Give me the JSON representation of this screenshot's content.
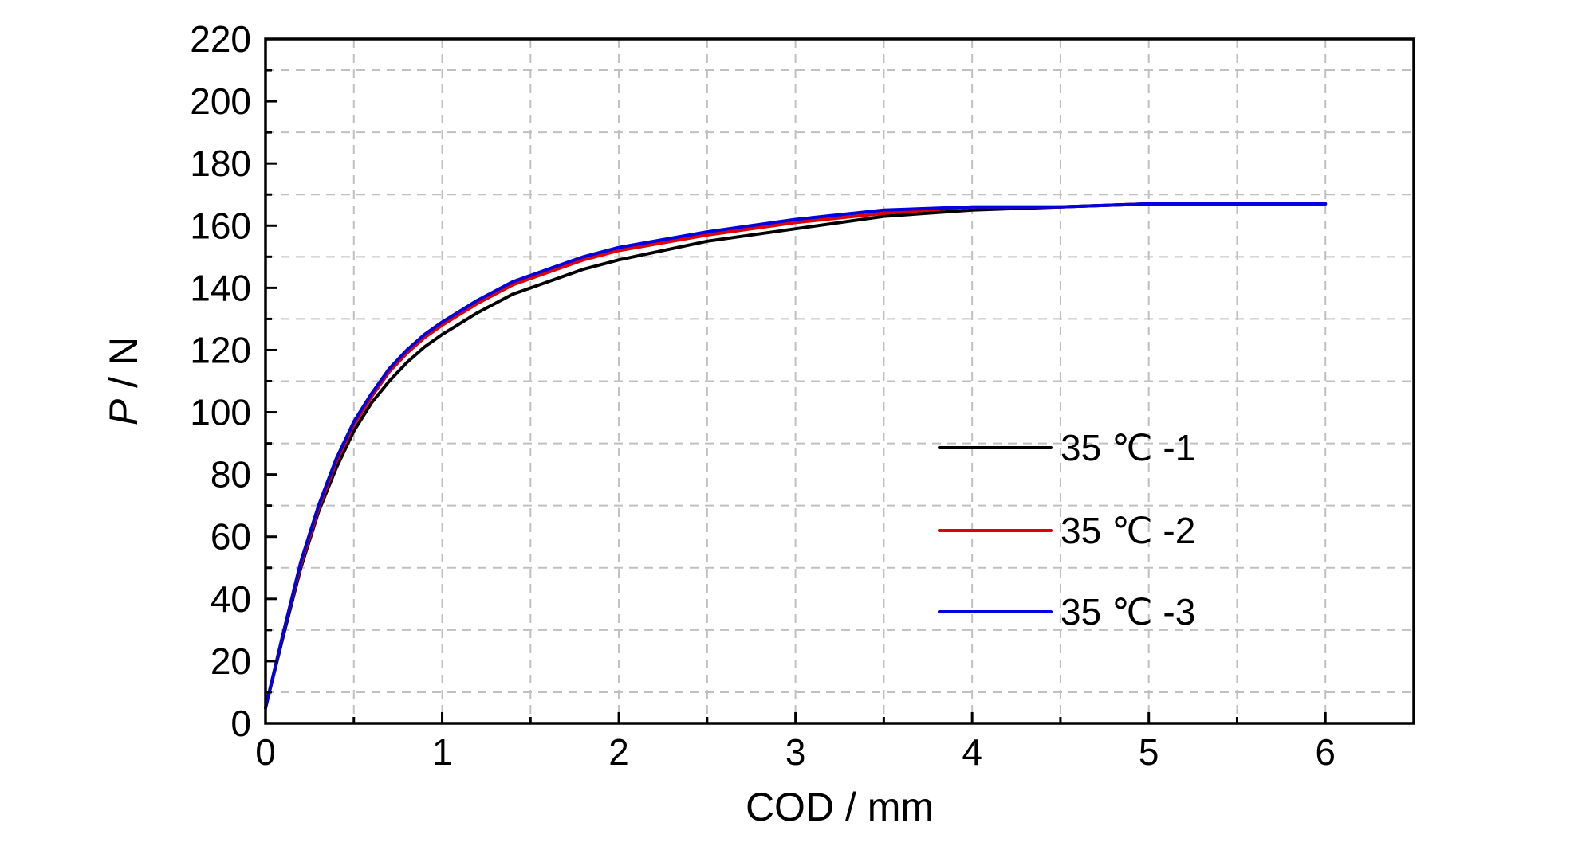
{
  "chart_data": {
    "type": "line",
    "title": "",
    "xlabel": "COD / mm",
    "ylabel_italic": "P",
    "ylabel_rest": " / N",
    "xlim": [
      0,
      6.5
    ],
    "ylim": [
      0,
      220
    ],
    "x_ticks": [
      "0",
      "1",
      "2",
      "3",
      "4",
      "5",
      "6"
    ],
    "x_tick_values": [
      0,
      1,
      2,
      3,
      4,
      5,
      6
    ],
    "y_ticks": [
      "0",
      "20",
      "40",
      "60",
      "80",
      "100",
      "120",
      "140",
      "160",
      "180",
      "200",
      "220"
    ],
    "y_tick_values": [
      0,
      20,
      40,
      60,
      80,
      100,
      120,
      140,
      160,
      180,
      200,
      220
    ],
    "grid": true,
    "legend_position": "center-right",
    "series": [
      {
        "name": "35 ℃ -1",
        "color": "#000000",
        "x": [
          0,
          0.1,
          0.2,
          0.3,
          0.4,
          0.5,
          0.6,
          0.7,
          0.8,
          0.9,
          1.0,
          1.2,
          1.4,
          1.6,
          1.8,
          2.0,
          2.5,
          3.0,
          3.5,
          4.0,
          4.5,
          5.0,
          5.5,
          6.0
        ],
        "y": [
          5,
          28,
          50,
          68,
          82,
          94,
          103,
          110,
          116,
          121,
          125,
          132,
          138,
          142,
          146,
          149,
          155,
          159,
          163,
          165,
          166,
          167,
          167,
          167
        ]
      },
      {
        "name": "35 ℃ -2",
        "color": "#e00000",
        "x": [
          0,
          0.1,
          0.2,
          0.3,
          0.4,
          0.5,
          0.6,
          0.7,
          0.8,
          0.9,
          1.0,
          1.2,
          1.4,
          1.6,
          1.8,
          2.0,
          2.5,
          3.0,
          3.5,
          4.0,
          4.5,
          5.0,
          5.5,
          6.0
        ],
        "y": [
          5,
          29,
          51,
          69,
          84,
          96,
          105,
          113,
          119,
          124,
          128,
          135,
          141,
          145,
          149,
          152,
          157,
          161,
          164,
          166,
          166,
          167,
          167,
          167
        ]
      },
      {
        "name": "35 ℃ -3",
        "color": "#0000e0",
        "x": [
          0,
          0.1,
          0.2,
          0.3,
          0.4,
          0.5,
          0.6,
          0.7,
          0.8,
          0.9,
          1.0,
          1.2,
          1.4,
          1.6,
          1.8,
          2.0,
          2.5,
          3.0,
          3.5,
          4.0,
          4.5,
          5.0,
          5.5,
          6.0
        ],
        "y": [
          5,
          29,
          52,
          70,
          85,
          97,
          106,
          114,
          120,
          125,
          129,
          136,
          142,
          146,
          150,
          153,
          158,
          162,
          165,
          166,
          166,
          167,
          167,
          167
        ]
      }
    ]
  }
}
